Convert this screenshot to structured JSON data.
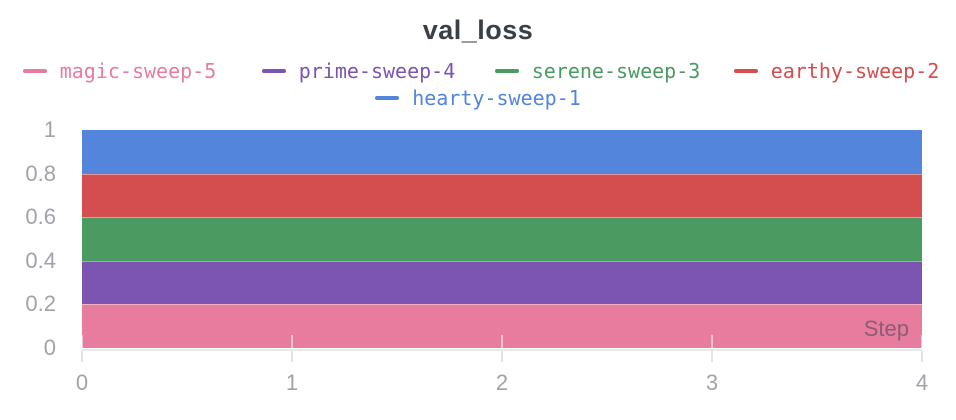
{
  "panel": {
    "title": "val_loss"
  },
  "legend": {
    "rows": [
      [
        {
          "label": "magic-sweep-5",
          "color": "#E87C9F"
        },
        {
          "label": "prime-sweep-4",
          "color": "#7C54B1"
        },
        {
          "label": "serene-sweep-3",
          "color": "#4B9A61"
        },
        {
          "label": "earthy-sweep-2",
          "color": "#D44D4F"
        }
      ],
      [
        {
          "label": "hearty-sweep-1",
          "color": "#5285DB"
        }
      ]
    ]
  },
  "axis": {
    "x_tick_labels": [
      "0",
      "1",
      "2",
      "3",
      "4"
    ],
    "y_tick_labels": [
      "1",
      "0.8",
      "0.6",
      "0.4",
      "0.2",
      "0"
    ],
    "step_label": "Step"
  },
  "chart_data": {
    "type": "area",
    "title": "val_loss",
    "xlabel": "Step",
    "ylabel": "val_loss",
    "x": [
      0,
      1,
      2,
      3,
      4
    ],
    "xlim": [
      0,
      4
    ],
    "ylim": [
      0,
      1
    ],
    "grid": false,
    "legend_position": "top",
    "series": [
      {
        "name": "hearty-sweep-1",
        "color": "#5285DB",
        "values": [
          1.0,
          1.0,
          1.0,
          1.0,
          1.0
        ],
        "band": [
          0.8,
          1.0
        ]
      },
      {
        "name": "earthy-sweep-2",
        "color": "#D44D4F",
        "values": [
          0.8,
          0.8,
          0.8,
          0.8,
          0.8
        ],
        "band": [
          0.6,
          0.8
        ]
      },
      {
        "name": "serene-sweep-3",
        "color": "#4B9A61",
        "values": [
          0.6,
          0.6,
          0.6,
          0.6,
          0.6
        ],
        "band": [
          0.4,
          0.6
        ]
      },
      {
        "name": "prime-sweep-4",
        "color": "#7C54B1",
        "values": [
          0.4,
          0.4,
          0.4,
          0.4,
          0.4
        ],
        "band": [
          0.2,
          0.4
        ]
      },
      {
        "name": "magic-sweep-5",
        "color": "#E87C9F",
        "values": [
          0.2,
          0.2,
          0.2,
          0.2,
          0.2
        ],
        "band": [
          0.0,
          0.2
        ]
      }
    ],
    "colors": {
      "title": "#3A3F45",
      "tick_label": "#A2A3AA",
      "axis_line": "#E9E9EC"
    }
  }
}
